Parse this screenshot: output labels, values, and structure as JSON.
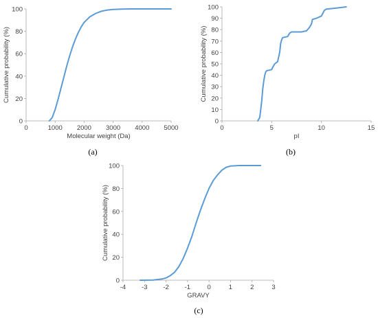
{
  "colors": {
    "series": "#5b9bd5",
    "axis": "#a6a6a6",
    "text": "#404040"
  },
  "chart_data": [
    {
      "panel_label": "(a)",
      "type": "line",
      "xlabel": "Molecular weight (Da)",
      "ylabel": "Cumulative probability (%)",
      "xlim": [
        0,
        5000
      ],
      "ylim": [
        0,
        100
      ],
      "xticks": [
        "0",
        "1000",
        "2000",
        "3000",
        "4000",
        "5000"
      ],
      "yticks": [
        "0",
        "20",
        "40",
        "60",
        "80",
        "100"
      ],
      "grid": false,
      "series": [
        {
          "x": [
            800,
            900,
            1000,
            1100,
            1200,
            1300,
            1400,
            1500,
            1600,
            1700,
            1800,
            1900,
            2000,
            2200,
            2400,
            2600,
            2800,
            3000,
            3300,
            3600,
            4000,
            5000
          ],
          "y": [
            0,
            3,
            10,
            19,
            29,
            39,
            49,
            58,
            66,
            73,
            79,
            84,
            88,
            93,
            96,
            98,
            99,
            99.5,
            99.8,
            100,
            100,
            100
          ]
        }
      ]
    },
    {
      "panel_label": "(b)",
      "type": "line",
      "xlabel": "pI",
      "ylabel": "Cumulative probability (%)",
      "xlim": [
        0,
        15
      ],
      "ylim": [
        0,
        100
      ],
      "xticks": [
        "0",
        "5",
        "10",
        "15"
      ],
      "yticks": [
        "0",
        "10",
        "20",
        "30",
        "40",
        "50",
        "60",
        "70",
        "80",
        "90",
        "100"
      ],
      "grid": false,
      "series": [
        {
          "x": [
            3.6,
            3.8,
            3.9,
            4.0,
            4.1,
            4.2,
            4.3,
            4.4,
            4.5,
            5.0,
            5.1,
            5.3,
            5.6,
            5.8,
            5.9,
            6.0,
            6.1,
            6.6,
            6.8,
            7.0,
            8.0,
            8.5,
            8.8,
            9.0,
            9.1,
            9.5,
            10.0,
            10.3,
            10.5,
            11.0,
            11.5,
            12.5
          ],
          "y": [
            0,
            3,
            10,
            18,
            28,
            35,
            40,
            43,
            44,
            45,
            47,
            50,
            52,
            60,
            68,
            71,
            73,
            74,
            77,
            78,
            78,
            79,
            82,
            85,
            89,
            90,
            92,
            97,
            98,
            98.5,
            99,
            100
          ]
        }
      ]
    },
    {
      "panel_label": "(c)",
      "type": "line",
      "xlabel": "GRAVY",
      "ylabel": "Cumulative probability (%)",
      "xlim": [
        -4,
        3
      ],
      "ylim": [
        0,
        100
      ],
      "xticks": [
        "-4",
        "-3",
        "-2",
        "-1",
        "0",
        "1",
        "2",
        "3"
      ],
      "yticks": [
        "0",
        "20",
        "40",
        "60",
        "80",
        "100"
      ],
      "grid": false,
      "series": [
        {
          "x": [
            -3.2,
            -2.6,
            -2.2,
            -2.0,
            -1.8,
            -1.6,
            -1.4,
            -1.2,
            -1.0,
            -0.8,
            -0.6,
            -0.4,
            -0.2,
            0.0,
            0.2,
            0.4,
            0.6,
            0.8,
            1.0,
            1.4,
            2.4
          ],
          "y": [
            0,
            0.2,
            1,
            2,
            4,
            7,
            12,
            19,
            28,
            38,
            50,
            61,
            71,
            80,
            87,
            92,
            96,
            98.5,
            99.5,
            100,
            100
          ]
        }
      ]
    }
  ]
}
